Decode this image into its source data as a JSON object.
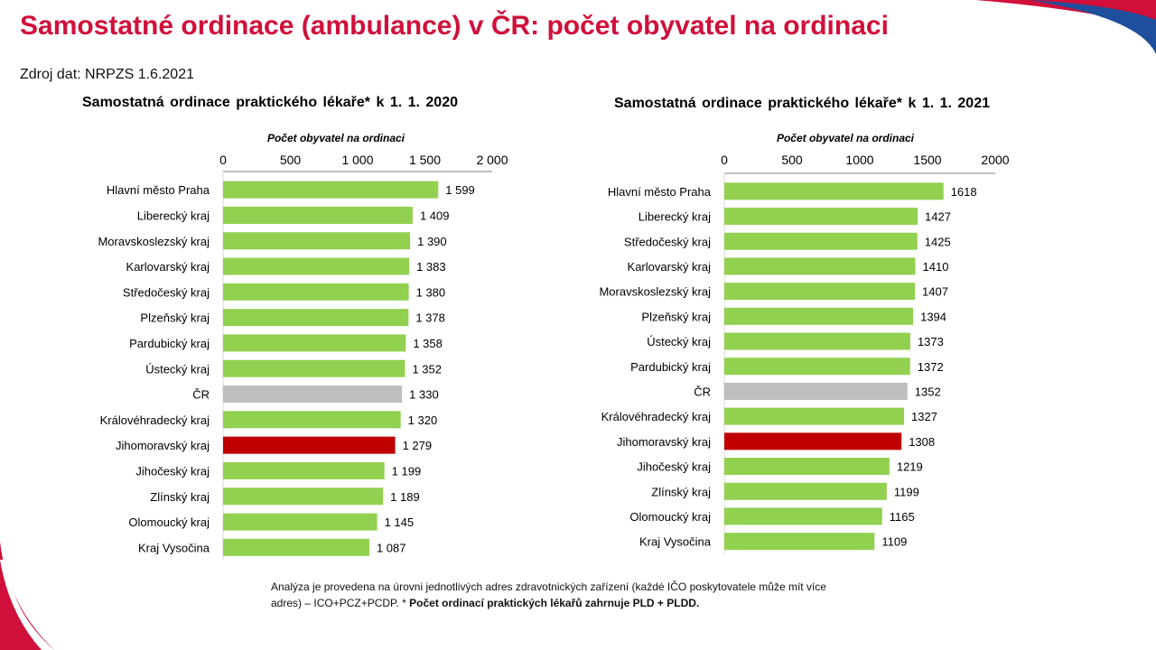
{
  "page": {
    "title": "Samostatné ordinace (ambulance) v ČR: počet obyvatel na ordinaci",
    "source": "Zdroj dat: NRPZS 1.6.2021",
    "footnote_plain": "Analýza je provedena na úrovni jednotlivých adres zdravotnických zařízení (každé IČO poskytovatele může mít více adres) – ICO+PCZ+PCDP. * ",
    "footnote_bold": "Počet ordinací praktických lékařů zahrnuje PLD + PLDD."
  },
  "colors": {
    "title": "#d0103a",
    "bar_region": "#92d050",
    "bar_cr": "#bfbfbf",
    "bar_jihomoravsky": "#c00000",
    "deco_blue": "#1f4e9c",
    "deco_red": "#d0103a"
  },
  "chart_data": [
    {
      "type": "bar",
      "orientation": "horizontal",
      "title": "Samostatná ordinace praktického lékaře* k 1. 1. 2020",
      "xlabel": "Počet obyvatel na ordinaci",
      "xlim": [
        0,
        2000
      ],
      "ticks": [
        0,
        500,
        1000,
        1500,
        2000
      ],
      "tick_labels": [
        "0",
        "500",
        "1 000",
        "1 500",
        "2 000"
      ],
      "categories": [
        "Hlavní město Praha",
        "Liberecký kraj",
        "Moravskoslezský kraj",
        "Karlovarský kraj",
        "Středočeský kraj",
        "Plzeňský kraj",
        "Pardubický kraj",
        "Ústecký kraj",
        "ČR",
        "Královéhradecký kraj",
        "Jihomoravský kraj",
        "Jihočeský kraj",
        "Zlínský kraj",
        "Olomoucký kraj",
        "Kraj Vysočina"
      ],
      "values": [
        1599,
        1409,
        1390,
        1383,
        1380,
        1378,
        1358,
        1352,
        1330,
        1320,
        1279,
        1199,
        1189,
        1145,
        1087
      ],
      "value_labels": [
        "1 599",
        "1 409",
        "1 390",
        "1 383",
        "1 380",
        "1 378",
        "1 358",
        "1 352",
        "1 330",
        "1 320",
        "1 279",
        "1 199",
        "1 189",
        "1 145",
        "1 087"
      ],
      "highlight": {
        "ČR": "#bfbfbf",
        "Jihomoravský kraj": "#c00000"
      },
      "grid": false
    },
    {
      "type": "bar",
      "orientation": "horizontal",
      "title": "Samostatná ordinace praktického lékaře* k 1. 1. 2021",
      "xlabel": "Počet obyvatel na ordinaci",
      "xlim": [
        0,
        2000
      ],
      "ticks": [
        0,
        500,
        1000,
        1500,
        2000
      ],
      "tick_labels": [
        "0",
        "500",
        "1000",
        "1500",
        "2000"
      ],
      "categories": [
        "Hlavní město Praha",
        "Liberecký kraj",
        "Středočeský kraj",
        "Karlovarský kraj",
        "Moravskoslezský kraj",
        "Plzeňský kraj",
        "Ústecký kraj",
        "Pardubický kraj",
        "ČR",
        "Královéhradecký kraj",
        "Jihomoravský kraj",
        "Jihočeský kraj",
        "Zlínský kraj",
        "Olomoucký kraj",
        "Kraj Vysočina"
      ],
      "values": [
        1618,
        1427,
        1425,
        1410,
        1407,
        1394,
        1373,
        1372,
        1352,
        1327,
        1308,
        1219,
        1199,
        1165,
        1109
      ],
      "value_labels": [
        "1618",
        "1427",
        "1425",
        "1410",
        "1407",
        "1394",
        "1373",
        "1372",
        "1352",
        "1327",
        "1308",
        "1219",
        "1199",
        "1165",
        "1109"
      ],
      "highlight": {
        "ČR": "#bfbfbf",
        "Jihomoravský kraj": "#c00000"
      },
      "grid": false
    }
  ]
}
